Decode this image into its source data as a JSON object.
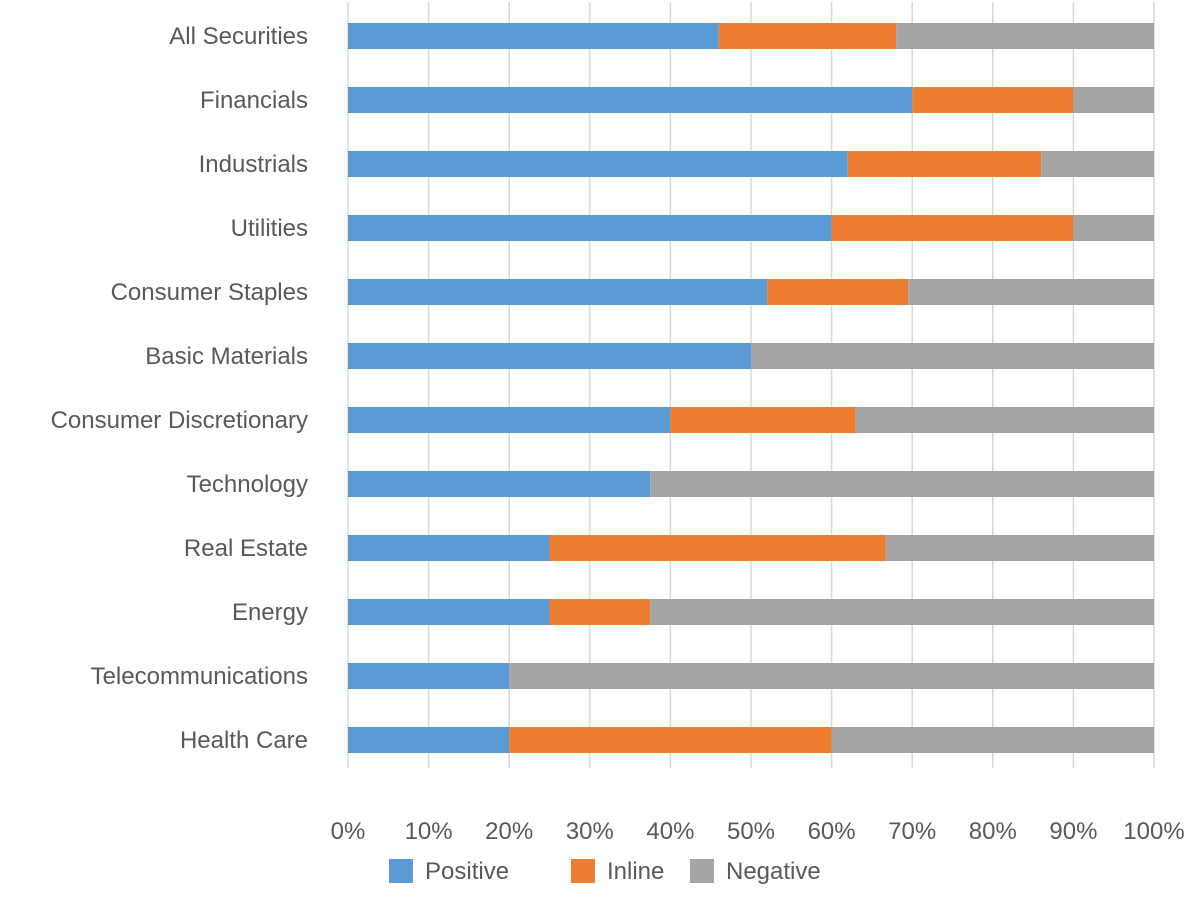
{
  "chart_data": {
    "type": "bar",
    "orientation": "horizontal",
    "stacked": true,
    "normalized": true,
    "title": "",
    "xlabel": "",
    "ylabel": "",
    "xlim": [
      0,
      100
    ],
    "x_ticks": [
      "0%",
      "10%",
      "20%",
      "30%",
      "40%",
      "50%",
      "60%",
      "70%",
      "80%",
      "90%",
      "100%"
    ],
    "grid": true,
    "legend_position": "bottom",
    "categories": [
      "All Securities",
      "Financials",
      "Industrials",
      "Utilities",
      "Consumer Staples",
      "Basic Materials",
      "Consumer Discretionary",
      "Technology",
      "Real Estate",
      "Energy",
      "Telecommunications",
      "Health Care"
    ],
    "series": [
      {
        "name": "Positive",
        "color": "#5b9bd5",
        "values": [
          46,
          70,
          62,
          60,
          52,
          50,
          40,
          37.5,
          25,
          25,
          20,
          20
        ]
      },
      {
        "name": "Inline",
        "color": "#ed7d31",
        "values": [
          22,
          20,
          24,
          30,
          17.5,
          0,
          23,
          0,
          41.7,
          12.5,
          0,
          40
        ]
      },
      {
        "name": "Negative",
        "color": "#a5a5a5",
        "values": [
          32,
          10,
          14,
          10,
          30.5,
          50,
          37,
          62.5,
          33.3,
          62.5,
          80,
          40
        ]
      }
    ]
  }
}
